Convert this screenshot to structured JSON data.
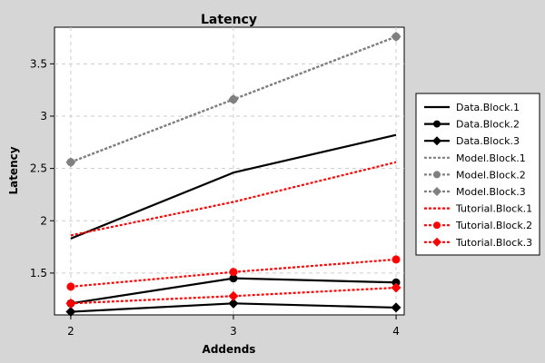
{
  "chart_data": {
    "type": "line",
    "title": "Latency",
    "xlabel": "Addends",
    "ylabel": "Latency",
    "x": [
      2,
      3,
      4
    ],
    "xlim": [
      1.9,
      4.05
    ],
    "ylim": [
      1.1,
      3.85
    ],
    "xticks": [
      "2",
      "3",
      "4"
    ],
    "yticks": [
      {
        "value": 1.5,
        "label": "1.5"
      },
      {
        "value": 2,
        "label": "2"
      },
      {
        "value": 2.5,
        "label": "2.5"
      },
      {
        "value": 3,
        "label": "3"
      },
      {
        "value": 3.5,
        "label": "3.5"
      }
    ],
    "grid": true,
    "legend_position": "right",
    "series": [
      {
        "name": "Data.Block.1",
        "values": [
          1.83,
          2.46,
          2.82
        ],
        "color": "#000000",
        "dash": "solid",
        "marker": "none"
      },
      {
        "name": "Data.Block.2",
        "values": [
          1.21,
          1.45,
          1.41
        ],
        "color": "#000000",
        "dash": "solid",
        "marker": "circle"
      },
      {
        "name": "Data.Block.3",
        "values": [
          1.13,
          1.21,
          1.17
        ],
        "color": "#000000",
        "dash": "solid",
        "marker": "diamond"
      },
      {
        "name": "Model.Block.1",
        "values": [
          2.56,
          3.16,
          3.76
        ],
        "color": "#808080",
        "dash": "dotted",
        "marker": "none"
      },
      {
        "name": "Model.Block.2",
        "values": [
          2.56,
          3.16,
          3.76
        ],
        "color": "#808080",
        "dash": "dotted",
        "marker": "circle"
      },
      {
        "name": "Model.Block.3",
        "values": [
          2.56,
          3.16,
          3.76
        ],
        "color": "#808080",
        "dash": "dotted",
        "marker": "diamond"
      },
      {
        "name": "Tutorial.Block.1",
        "values": [
          1.86,
          2.18,
          2.56
        ],
        "color": "#ff0000",
        "dash": "dotted",
        "marker": "none"
      },
      {
        "name": "Tutorial.Block.2",
        "values": [
          1.37,
          1.51,
          1.63
        ],
        "color": "#ff0000",
        "dash": "dotted",
        "marker": "circle"
      },
      {
        "name": "Tutorial.Block.3",
        "values": [
          1.21,
          1.28,
          1.36
        ],
        "color": "#ff0000",
        "dash": "dotted",
        "marker": "diamond"
      }
    ]
  }
}
